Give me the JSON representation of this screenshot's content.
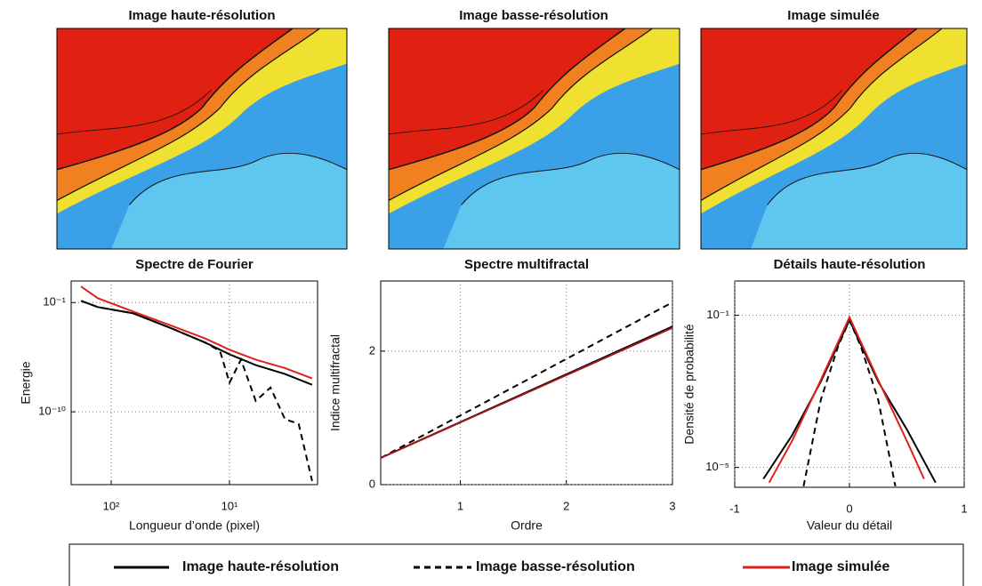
{
  "images": [
    {
      "title": "Image haute-résolution"
    },
    {
      "title": "Image basse-résolution"
    },
    {
      "title": "Image simulée"
    }
  ],
  "chart_data": [
    {
      "type": "line",
      "title": "Spectre de Fourier",
      "x_label": "Longueur d’onde (pixel)",
      "y_label": "Energie",
      "xscale": "log",
      "yscale": "log",
      "grid": true,
      "xlim": [
        218,
        1.8
      ],
      "ylim": [
        1e-16,
        6
      ],
      "xticks": [
        {
          "value": 100,
          "label": "10²"
        },
        {
          "value": 10,
          "label": "10¹"
        }
      ],
      "yticks": [
        {
          "value": 0.1,
          "label": "10⁻¹"
        },
        {
          "value": 1e-10,
          "label": "10⁻¹⁰"
        }
      ],
      "series": [
        {
          "name": "Image haute-résolution",
          "color": "#000000",
          "style": "solid",
          "x": [
            180,
            130,
            65,
            32,
            16,
            10,
            6,
            3.4,
            2
          ],
          "values": [
            0.14,
            0.043,
            0.013,
            0.00087,
            5e-05,
            5.5e-06,
            7e-07,
            1.3e-07,
            1.7e-08
          ]
        },
        {
          "name": "Image basse-résolution",
          "color": "#000000",
          "style": "dashed",
          "x": [
            180,
            130,
            65,
            32,
            16,
            12,
            10,
            8,
            6,
            4.5,
            3.4,
            2.6,
            2
          ],
          "values": [
            0.14,
            0.043,
            0.013,
            0.00087,
            5e-05,
            1e-05,
            2.5e-08,
            2e-06,
            8e-10,
            1e-08,
            2.5e-11,
            1e-11,
            2e-16
          ]
        },
        {
          "name": "Image simulée",
          "color": "#e0201c",
          "style": "solid",
          "x": [
            180,
            130,
            65,
            32,
            16,
            10,
            6,
            3.4,
            2
          ],
          "values": [
            2.1,
            0.23,
            0.018,
            0.0014,
            0.00011,
            1.3e-05,
            2e-06,
            4e-07,
            5.6e-08
          ]
        }
      ]
    },
    {
      "type": "line",
      "title": "Spectre multifractal",
      "x_label": "Ordre",
      "y_label": "Indice multifractal",
      "xscale": "linear",
      "yscale": "linear",
      "grid": true,
      "xlim": [
        0.25,
        3
      ],
      "ylim": [
        0,
        3.05
      ],
      "xticks": [
        1,
        2,
        3
      ],
      "yticks": [
        0,
        2
      ],
      "series": [
        {
          "name": "Image haute-résolution",
          "color": "#000000",
          "style": "solid",
          "x": [
            0.25,
            3
          ],
          "values": [
            0.4,
            2.37
          ]
        },
        {
          "name": "Image basse-résolution",
          "color": "#000000",
          "style": "dashed",
          "x": [
            0.25,
            3
          ],
          "values": [
            0.4,
            2.73
          ]
        },
        {
          "name": "Image simulée",
          "color": "#a01818",
          "style": "solid",
          "x": [
            0.25,
            3
          ],
          "values": [
            0.4,
            2.35
          ]
        }
      ]
    },
    {
      "type": "line",
      "title": "Détails haute-résolution",
      "x_label": "Valeur du détail",
      "y_label": "Densité de probabilité",
      "xscale": "linear",
      "yscale": "log",
      "grid": true,
      "xlim": [
        -1,
        1
      ],
      "ylim": [
        3e-06,
        0.8
      ],
      "xticks": [
        -1,
        0,
        1
      ],
      "yticks": [
        {
          "value": 0.1,
          "label": "10⁻¹"
        },
        {
          "value": 1e-05,
          "label": "10⁻⁵"
        }
      ],
      "series": [
        {
          "name": "Image haute-résolution",
          "color": "#000000",
          "style": "solid",
          "x": [
            -0.75,
            -0.5,
            -0.25,
            0,
            0.25,
            0.5,
            0.75
          ],
          "values": [
            5e-06,
            7e-05,
            0.0018,
            0.075,
            0.0018,
            0.0001,
            4e-06
          ]
        },
        {
          "name": "Image basse-résolution",
          "color": "#000000",
          "style": "dashed",
          "x": [
            -0.4,
            -0.25,
            -0.1,
            0,
            0.1,
            0.25,
            0.4
          ],
          "values": [
            3.2e-06,
            0.0006,
            0.015,
            0.075,
            0.015,
            0.0006,
            3.2e-06
          ]
        },
        {
          "name": "Image simulée",
          "color": "#e0201c",
          "style": "solid",
          "x": [
            -0.7,
            -0.5,
            -0.25,
            0,
            0.25,
            0.5,
            0.65
          ],
          "values": [
            4e-06,
            5e-05,
            0.002,
            0.09,
            0.002,
            5e-05,
            5e-06
          ]
        }
      ]
    }
  ]
}
